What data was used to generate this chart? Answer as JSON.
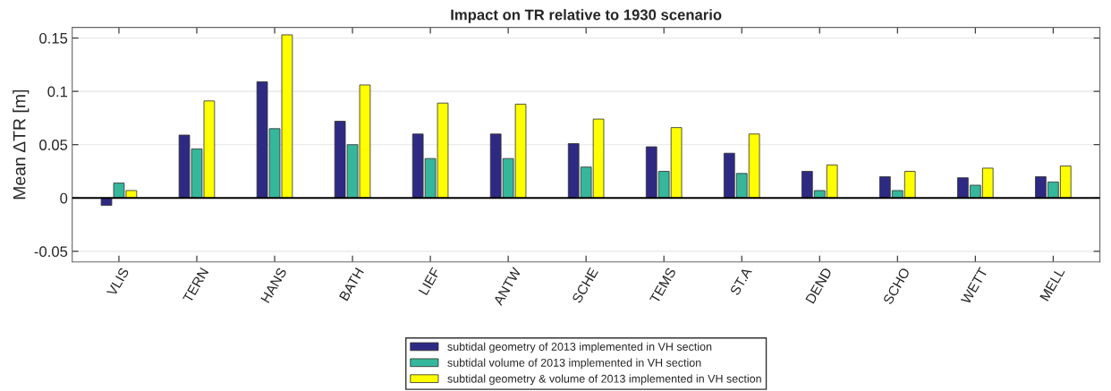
{
  "chart_data": {
    "type": "bar",
    "title": "Impact on TR relative to 1930 scenario",
    "ylabel": "Mean ΔTR [m]",
    "categories": [
      "VLIS",
      "TERN",
      "HANS",
      "BATH",
      "LIEF",
      "ANTW",
      "SCHE",
      "TEMS",
      "ST.A",
      "DEND",
      "SCHO",
      "WETT",
      "MELL"
    ],
    "series": [
      {
        "name": "subtidal geometry of 2013 implemented in VH section",
        "color": "#2e2a83",
        "values": [
          -0.007,
          0.059,
          0.109,
          0.072,
          0.06,
          0.06,
          0.051,
          0.048,
          0.042,
          0.025,
          0.02,
          0.019,
          0.02
        ]
      },
      {
        "name": "subtidal volume of 2013 implemented in VH section",
        "color": "#35b79b",
        "values": [
          0.014,
          0.046,
          0.065,
          0.05,
          0.037,
          0.037,
          0.029,
          0.025,
          0.023,
          0.007,
          0.007,
          0.012,
          0.015
        ]
      },
      {
        "name": "subtidal geometry & volume of 2013 implemented in VH section",
        "color": "#ffff00",
        "values": [
          0.007,
          0.091,
          0.153,
          0.106,
          0.089,
          0.088,
          0.074,
          0.066,
          0.06,
          0.031,
          0.025,
          0.028,
          0.03
        ]
      }
    ],
    "ylim": [
      -0.06,
      0.16
    ],
    "yticks": [
      {
        "value": -0.05,
        "label": "-0.05"
      },
      0,
      0.05,
      0.1,
      0.15
    ],
    "grid": "y",
    "legend": "bottom"
  }
}
